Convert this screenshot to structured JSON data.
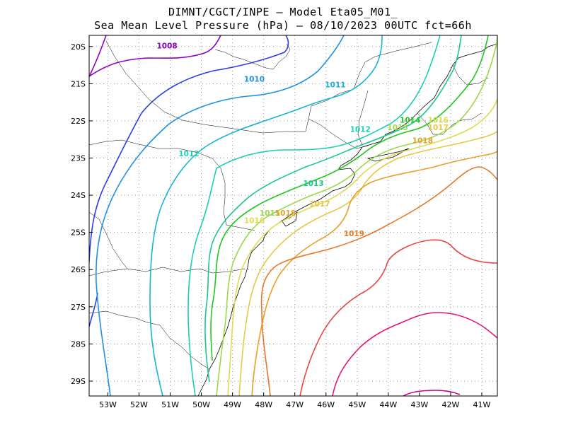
{
  "header": {
    "line1": "DIMNT/CGCT/INPE –  Model Eta05_M01_",
    "line2": "Sea Mean Level Pressure (hPa) – 08/10/2023 00UTC fct=66h"
  },
  "map": {
    "lon_ticks": [
      "53W",
      "52W",
      "51W",
      "50W",
      "49W",
      "48W",
      "47W",
      "46W",
      "45W",
      "44W",
      "43W",
      "42W",
      "41W"
    ],
    "lat_ticks": [
      "20S",
      "21S",
      "22S",
      "23S",
      "24S",
      "25S",
      "26S",
      "27S",
      "28S",
      "29S"
    ],
    "lon_range": [
      -53.6,
      -40.5
    ],
    "lat_range": [
      -29.4,
      -19.7
    ]
  },
  "contours": [
    {
      "level": "1008",
      "color": "#8b00c8",
      "label": "1008"
    },
    {
      "level": "1009",
      "color": "#2a3ee6",
      "label": ""
    },
    {
      "level": "1010",
      "color": "#1e90e6",
      "label": "1010"
    },
    {
      "level": "1011",
      "color": "#16b4d6",
      "label": "1011"
    },
    {
      "level": "1012",
      "color": "#1ccfb4",
      "label": "1012"
    },
    {
      "level": "1013",
      "color": "#18c88c",
      "label": "1013"
    },
    {
      "level": "1014",
      "color": "#1ec81e",
      "label": "1014"
    },
    {
      "level": "1015",
      "color": "#9cd84a",
      "label": "1015"
    },
    {
      "level": "1016",
      "color": "#dcdc50",
      "label": "1016"
    },
    {
      "level": "1017",
      "color": "#e6c846",
      "label": "1017"
    },
    {
      "level": "1018",
      "color": "#e6a028",
      "label": "1018"
    },
    {
      "level": "1019",
      "color": "#e67828",
      "label": "1019"
    },
    {
      "level": "1020",
      "color": "#e64646",
      "label": ""
    },
    {
      "level": "1021",
      "color": "#e61478",
      "label": ""
    },
    {
      "level": "1022",
      "color": "#c8008c",
      "label": ""
    }
  ]
}
